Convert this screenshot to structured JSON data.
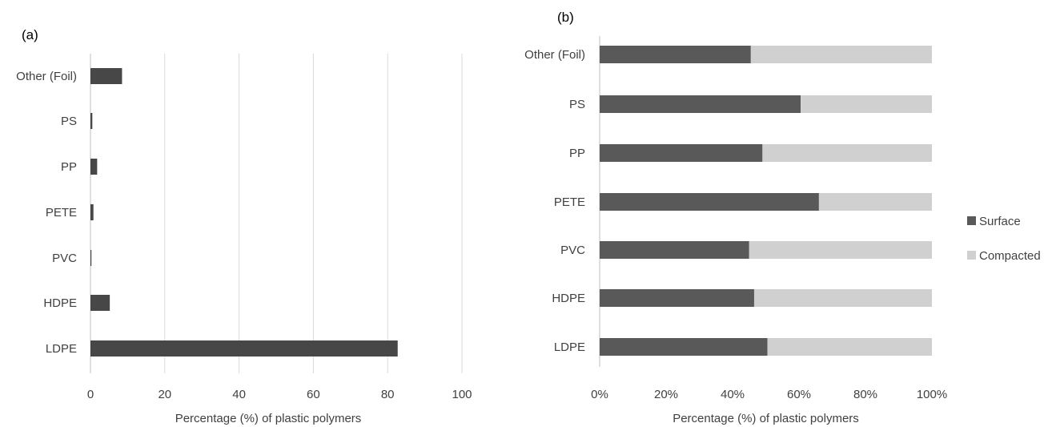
{
  "chart_data": [
    {
      "type": "bar",
      "orientation": "horizontal",
      "panel_label": "(a)",
      "categories": [
        "Other (Foil)",
        "PS",
        "PP",
        "PETE",
        "PVC",
        "HDPE",
        "LDPE"
      ],
      "values": [
        8.5,
        0.5,
        1.8,
        0.8,
        0.2,
        5.2,
        82.7
      ],
      "xlabel": "Percentage (%) of plastic polymers",
      "xlim": [
        0,
        100
      ],
      "xticks": [
        "0",
        "20",
        "40",
        "60",
        "80",
        "100"
      ],
      "grid": true,
      "colors": {
        "bar": "#474747",
        "grid": "#d9d9d9"
      }
    },
    {
      "type": "bar",
      "orientation": "horizontal",
      "stacked": "percent",
      "panel_label": "(b)",
      "categories": [
        "Other (Foil)",
        "PS",
        "PP",
        "PETE",
        "PVC",
        "HDPE",
        "LDPE"
      ],
      "series": [
        {
          "name": "Surface",
          "values": [
            45.5,
            60.5,
            49,
            66,
            45,
            46.5,
            50.5
          ],
          "color": "#595959"
        },
        {
          "name": "Compacted",
          "values": [
            54.5,
            39.5,
            51,
            34,
            55,
            53.5,
            49.5
          ],
          "color": "#d0d0d0"
        }
      ],
      "xlabel": "Percentage (%) of plastic polymers",
      "xlim": [
        0,
        100
      ],
      "xticks": [
        "0%",
        "20%",
        "40%",
        "60%",
        "80%",
        "100%"
      ],
      "grid": false,
      "legend_position": "right"
    }
  ]
}
